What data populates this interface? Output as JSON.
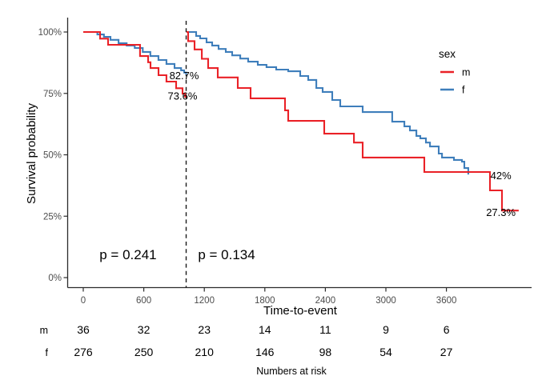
{
  "chart_data": {
    "type": "line",
    "subtype": "kaplan-meier-landmark",
    "xlabel": "Time-to-event",
    "ylabel": "Survival probability",
    "x_ticks": [
      0,
      600,
      1200,
      1800,
      2400,
      3000,
      3600
    ],
    "y_ticks": [
      {
        "value": 0,
        "label": "0%"
      },
      {
        "value": 25,
        "label": "25%"
      },
      {
        "value": 50,
        "label": "50%"
      },
      {
        "value": 75,
        "label": "75%"
      },
      {
        "value": 100,
        "label": "100%"
      }
    ],
    "grid": false,
    "landmark_time": 1020,
    "legend": {
      "title": "sex",
      "position": "right",
      "items": [
        {
          "label": "m",
          "color": "#EA2127"
        },
        {
          "label": "f",
          "color": "#3E7EBB"
        }
      ]
    },
    "series": [
      {
        "name": "f",
        "color": "#3E7EBB",
        "segments": {
          "before_landmark": [
            [
              0,
              100
            ],
            [
              140,
              99.0
            ],
            [
              205,
              98.0
            ],
            [
              270,
              96.8
            ],
            [
              350,
              95.4
            ],
            [
              430,
              94.5
            ],
            [
              510,
              93.5
            ],
            [
              590,
              91.9
            ],
            [
              665,
              90.2
            ],
            [
              745,
              88.6
            ],
            [
              825,
              87.0
            ],
            [
              905,
              85.3
            ],
            [
              970,
              84.4
            ],
            [
              1000,
              83.5
            ],
            [
              1020,
              82.7
            ]
          ],
          "after_landmark": [
            [
              1024,
              100
            ],
            [
              1119,
              98.4
            ],
            [
              1159,
              97.4
            ],
            [
              1222,
              95.8
            ],
            [
              1278,
              94.5
            ],
            [
              1341,
              93.1
            ],
            [
              1413,
              91.9
            ],
            [
              1476,
              90.5
            ],
            [
              1556,
              89.2
            ],
            [
              1635,
              87.9
            ],
            [
              1730,
              86.6
            ],
            [
              1817,
              85.7
            ],
            [
              1913,
              84.7
            ],
            [
              2032,
              84.0
            ],
            [
              2151,
              82.1
            ],
            [
              2230,
              80.5
            ],
            [
              2310,
              77.2
            ],
            [
              2373,
              75.6
            ],
            [
              2468,
              72.3
            ],
            [
              2548,
              69.7
            ],
            [
              2770,
              67.4
            ],
            [
              3063,
              63.5
            ],
            [
              3183,
              61.6
            ],
            [
              3238,
              59.9
            ],
            [
              3302,
              57.7
            ],
            [
              3341,
              56.7
            ],
            [
              3397,
              55.0
            ],
            [
              3437,
              53.4
            ],
            [
              3524,
              50.5
            ],
            [
              3556,
              48.9
            ],
            [
              3675,
              47.9
            ],
            [
              3754,
              47.2
            ],
            [
              3778,
              44.6
            ],
            [
              3817,
              42.0
            ]
          ]
        }
      },
      {
        "name": "m",
        "color": "#EA2127",
        "segments": {
          "before_landmark": [
            [
              0,
              100
            ],
            [
              167,
              97.3
            ],
            [
              246,
              94.8
            ],
            [
              563,
              90.2
            ],
            [
              643,
              87.7
            ],
            [
              667,
              85.3
            ],
            [
              746,
              82.4
            ],
            [
              825,
              79.8
            ],
            [
              921,
              77.1
            ],
            [
              984,
              74.9
            ],
            [
              1010,
              73.6
            ],
            [
              1020,
              73.6
            ]
          ],
          "after_landmark": [
            [
              1024,
              100
            ],
            [
              1040,
              96.3
            ],
            [
              1103,
              92.9
            ],
            [
              1175,
              89.1
            ],
            [
              1238,
              85.3
            ],
            [
              1333,
              81.5
            ],
            [
              1532,
              77.2
            ],
            [
              1659,
              73.0
            ],
            [
              2000,
              68.1
            ],
            [
              2032,
              63.8
            ],
            [
              2389,
              58.6
            ],
            [
              2683,
              55.0
            ],
            [
              2770,
              48.9
            ],
            [
              3381,
              43.0
            ],
            [
              4032,
              35.5
            ],
            [
              4151,
              27.3
            ],
            [
              4317,
              27.3
            ]
          ]
        }
      }
    ],
    "percent_labels": [
      {
        "text": "82.7%",
        "t": 1000,
        "s": 82.3
      },
      {
        "text": "73.6%",
        "t": 984,
        "s": 74.0
      },
      {
        "text": "42%",
        "t": 4140,
        "s": 41.5
      },
      {
        "text": "27.3%",
        "t": 4140,
        "s": 26.5
      }
    ],
    "p_values": [
      {
        "text": "p = 0.241",
        "t": 444,
        "s": 9.5
      },
      {
        "text": "p = 0.134",
        "t": 1421,
        "s": 9.5
      }
    ],
    "risk_table": {
      "caption": "Numbers at risk",
      "times": [
        0,
        600,
        1200,
        1800,
        2400,
        3000,
        3600
      ],
      "rows": [
        {
          "label": "m",
          "values": [
            36,
            32,
            23,
            14,
            11,
            9,
            6
          ]
        },
        {
          "label": "f",
          "values": [
            276,
            250,
            210,
            146,
            98,
            54,
            27
          ]
        }
      ]
    },
    "colors": {
      "axis": "#2b2b2b",
      "tick_label": "#4d4d4d",
      "text": "#000000",
      "landmark_line": "#1a1a1a"
    }
  }
}
